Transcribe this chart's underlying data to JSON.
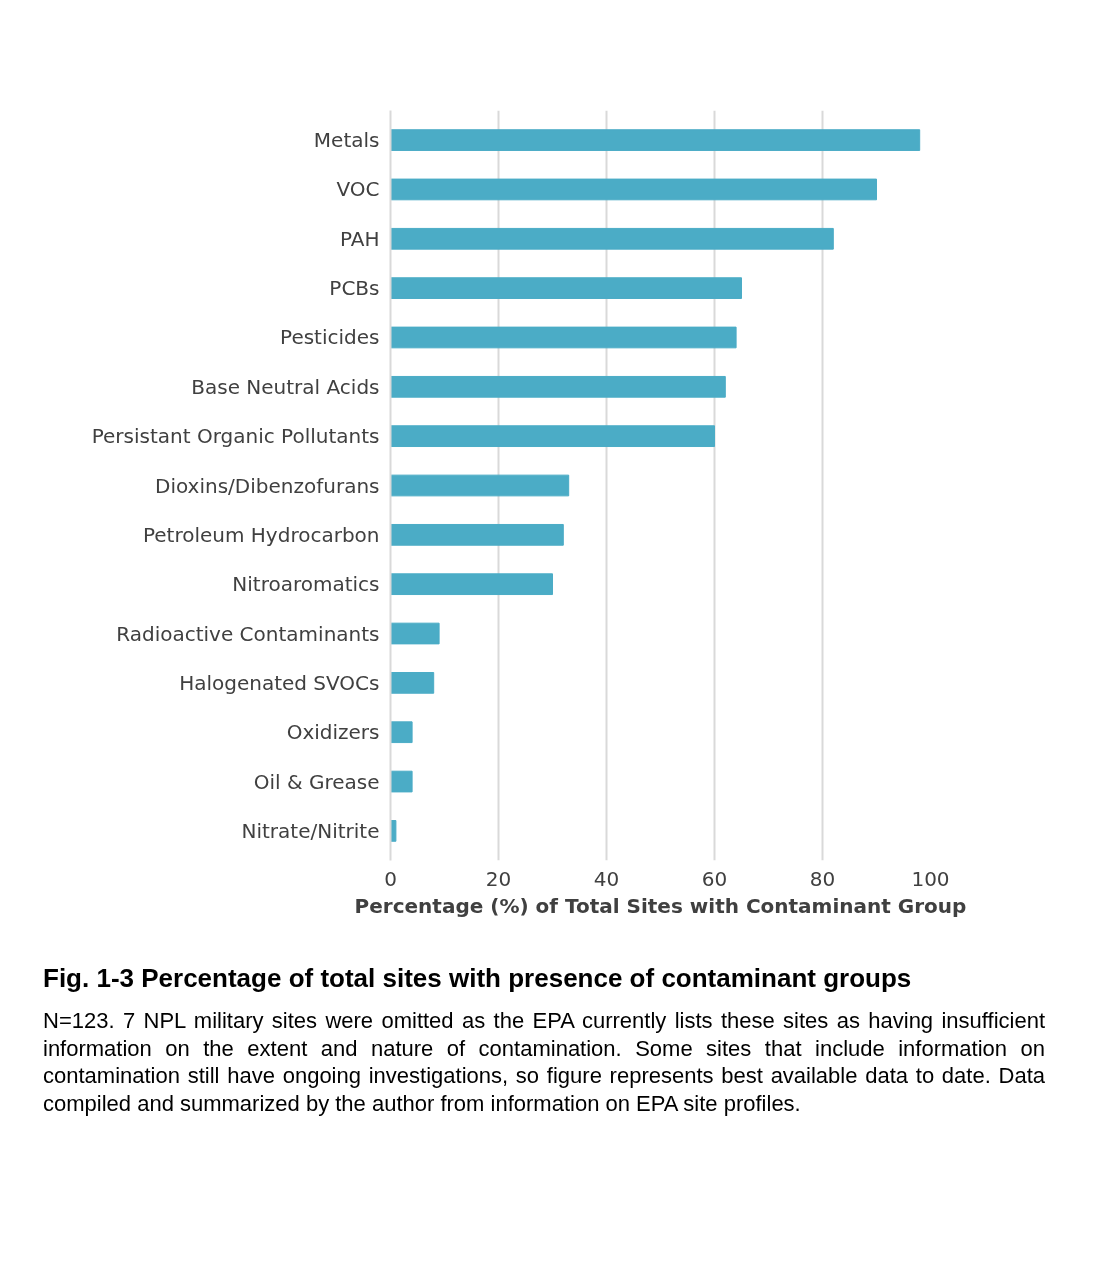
{
  "chart_data": {
    "type": "bar",
    "orientation": "horizontal",
    "title": "Fig. 1-3 Percentage of total sites with presence of contaminant groups",
    "xlabel": "Percentage (%) of Total Sites with Contaminant Group",
    "categories": [
      "Metals",
      "VOC",
      "PAH",
      "PCBs",
      "Pesticides",
      "Base Neutral Acids",
      "Persistant Organic Pollutants",
      "Dioxins/Dibenzofurans",
      "Petroleum Hydrocarbon",
      "Nitroaromatics",
      "Radioactive Contaminants",
      "Halogenated SVOCs",
      "Oxidizers",
      "Oil & Grease",
      "Nitrate/Nitrite"
    ],
    "values": [
      98,
      90,
      82,
      65,
      64,
      62,
      60,
      33,
      32,
      30,
      9,
      8,
      4,
      4,
      1
    ],
    "color": "#4bacc6",
    "xlim": [
      0,
      100
    ],
    "xticks": [
      0,
      20,
      40,
      60,
      80,
      100
    ],
    "grid": "x",
    "annotations": [
      "N=123. 7 NPL military sites were omitted as the EPA currently lists these sites as having insufficient information on the extent and nature of contamination. Some sites that include information on contamination still have ongoing investigations, so figure represents best available data to date. Data compiled and summarized by the author from information on EPA site profiles."
    ]
  }
}
